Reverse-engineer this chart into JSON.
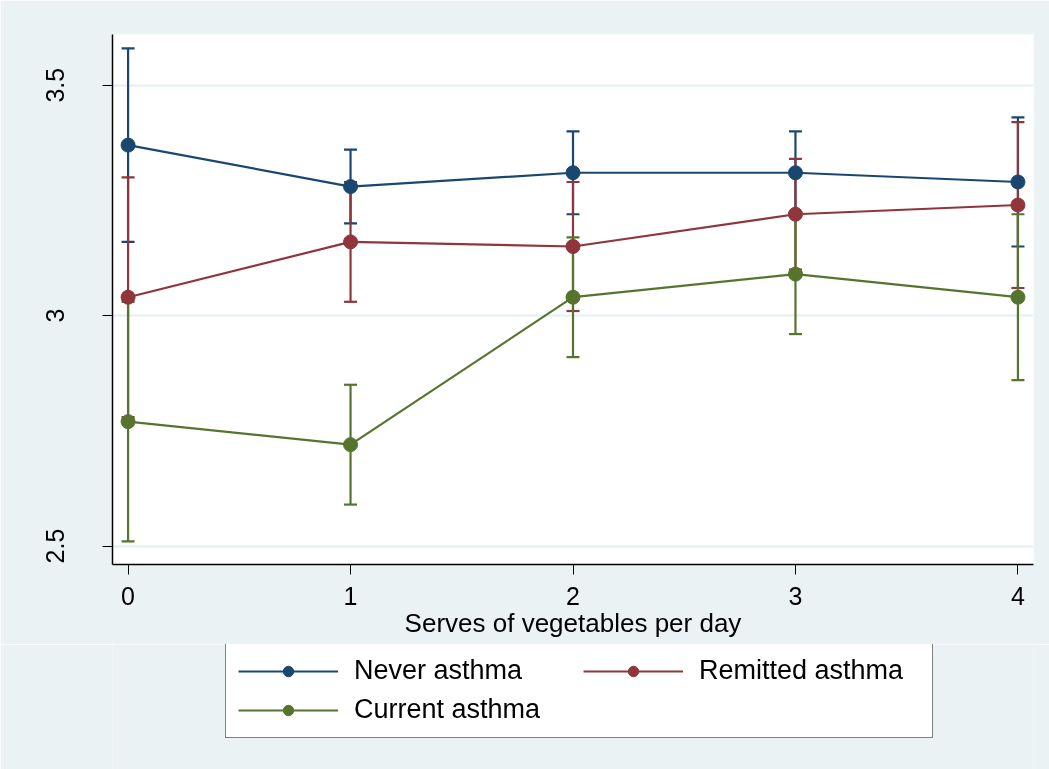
{
  "chart_data": {
    "type": "line",
    "xlabel": "Serves of vegetables per day",
    "x": [
      0,
      1,
      2,
      3,
      4
    ],
    "xlim": [
      -0.07,
      4.07
    ],
    "xticks": [
      0,
      1,
      2,
      3,
      4
    ],
    "ylim": [
      2.46,
      3.61
    ],
    "yticks": [
      2.5,
      3,
      3.5
    ],
    "grid": "y",
    "legend": "bottom",
    "marker": "circle",
    "line_style": "solid",
    "series": [
      {
        "name": "Never asthma",
        "color": "#1a476f",
        "values": [
          3.37,
          3.28,
          3.31,
          3.31,
          3.29
        ],
        "errors": [
          0.21,
          0.08,
          0.09,
          0.09,
          0.14
        ]
      },
      {
        "name": "Remitted asthma",
        "color": "#90353b",
        "values": [
          3.04,
          3.16,
          3.15,
          3.22,
          3.24
        ],
        "errors": [
          0.26,
          0.13,
          0.14,
          0.12,
          0.18
        ]
      },
      {
        "name": "Current asthma",
        "color": "#55752f",
        "values": [
          2.77,
          2.72,
          3.04,
          3.09,
          3.04
        ],
        "errors": [
          0.26,
          0.13,
          0.13,
          0.13,
          0.18
        ]
      }
    ]
  }
}
